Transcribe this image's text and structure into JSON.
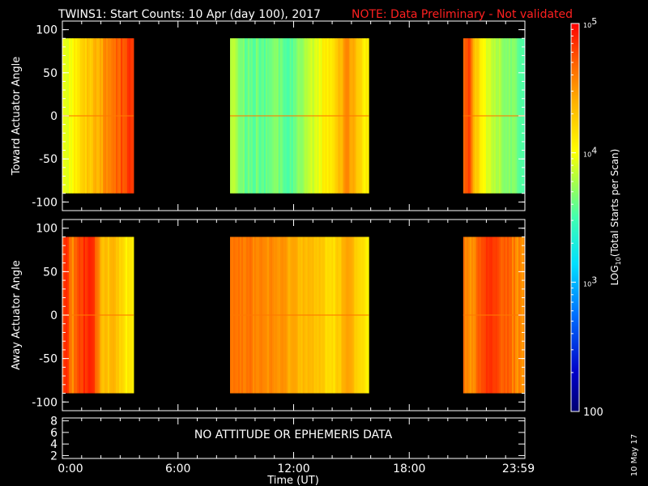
{
  "chart_data": {
    "type": "heatmap",
    "title": "TWINS1: Start Counts: 10 Apr (day 100), 2017",
    "note": "NOTE: Data Preliminary - Not validated",
    "xlabel": "Time (UT)",
    "x_ticks": [
      "0:00",
      "6:00",
      "12:00",
      "18:00",
      "23:59"
    ],
    "x_tick_hours": [
      0,
      6,
      12,
      18,
      24
    ],
    "xlim": [
      0,
      24
    ],
    "panels": [
      {
        "ylabel": "Toward Actuator Angle",
        "ylim": [
          -110,
          110
        ],
        "y_ticks": [
          "100",
          "50",
          "0",
          "-50",
          "-100"
        ],
        "y_tick_values": [
          100,
          50,
          0,
          -50,
          -100
        ],
        "data_y_range": [
          -90,
          90
        ],
        "segments": [
          {
            "start_hour": 0.0,
            "end_hour": 3.7,
            "profile": [
              10000,
              9500,
              11000,
              14000,
              16000,
              19000,
              22000,
              26000,
              30000,
              36000,
              42000,
              50000,
              60000,
              70000,
              55000
            ]
          },
          {
            "start_hour": 8.7,
            "end_hour": 15.9,
            "profile": [
              8000,
              5500,
              4500,
              3800,
              4200,
              3600,
              4000,
              4600,
              4000,
              3700,
              4400,
              5200,
              6500,
              8500,
              11000,
              13500,
              18000,
              26000,
              35000,
              22000,
              14000,
              11000
            ]
          },
          {
            "start_hour": 20.8,
            "end_hour": 24.0,
            "profile": [
              40000,
              70000,
              24000,
              14000,
              10000,
              8000,
              6500,
              5500,
              5000,
              4300,
              3800,
              3500
            ]
          }
        ]
      },
      {
        "ylabel": "Away Actuator Angle",
        "ylim": [
          -110,
          110
        ],
        "y_ticks": [
          "100",
          "50",
          "0",
          "-50",
          "-100"
        ],
        "y_tick_values": [
          100,
          50,
          0,
          -50,
          -100
        ],
        "data_y_range": [
          -90,
          90
        ],
        "segments": [
          {
            "start_hour": 0.0,
            "end_hour": 3.7,
            "profile": [
              60000,
              70000,
              35000,
              55000,
              70000,
              75000,
              70000,
              40000,
              22000,
              18000,
              25000,
              18000,
              14000,
              12000,
              12000
            ]
          },
          {
            "start_hour": 8.7,
            "end_hour": 15.9,
            "profile": [
              50000,
              45000,
              42000,
              40000,
              38000,
              36000,
              34000,
              33000,
              30000,
              28000,
              26000,
              24000,
              22000,
              20000,
              18000,
              16000,
              15000,
              22000,
              30000,
              18000,
              14000,
              13000
            ]
          },
          {
            "start_hour": 20.8,
            "end_hour": 24.0,
            "profile": [
              45000,
              30000,
              38000,
              50000,
              60000,
              65000,
              60000,
              55000,
              48000,
              40000,
              35000,
              32000
            ]
          }
        ]
      }
    ],
    "bottom_panel": {
      "y_ticks": [
        "8",
        "6",
        "4",
        "2"
      ],
      "y_tick_values": [
        8,
        6,
        4,
        2
      ],
      "ylim": [
        1.5,
        8.5
      ],
      "message": "NO ATTITUDE OR EPHEMERIS DATA"
    },
    "colorbar": {
      "label_prefix": "LOG",
      "label_sub": "10",
      "label_suffix": "(Total Starts per Scan)",
      "range": [
        100,
        100000
      ],
      "scale": "log",
      "tick_values": [
        100000,
        10000,
        1000,
        100
      ],
      "tick_base": "10",
      "tick_exponents": [
        "5",
        "4",
        "3",
        ""
      ],
      "tick_plain": [
        "",
        "",
        "",
        "100"
      ]
    },
    "date_stamp": "10 May 17",
    "colors": {
      "background": "#000000",
      "axes": "#ffffff",
      "note": "#ff2020"
    }
  }
}
